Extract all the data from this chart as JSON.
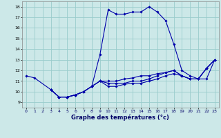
{
  "xlabel": "Graphe des températures (°c)",
  "background_color": "#cce8e8",
  "grid_color": "#99cccc",
  "line_color": "#0000aa",
  "xlim": [
    -0.5,
    23.5
  ],
  "ylim": [
    8.5,
    18.5
  ],
  "yticks": [
    9,
    10,
    11,
    12,
    13,
    14,
    15,
    16,
    17,
    18
  ],
  "xticks": [
    0,
    1,
    2,
    3,
    4,
    5,
    6,
    7,
    8,
    9,
    10,
    11,
    12,
    13,
    14,
    15,
    16,
    17,
    18,
    19,
    20,
    21,
    22,
    23
  ],
  "line1_x": [
    0,
    1,
    3,
    4,
    5,
    6,
    7,
    8,
    9,
    10,
    11,
    12,
    13,
    14,
    15,
    16,
    17,
    18,
    19,
    20,
    21,
    22,
    23
  ],
  "line1_y": [
    11.5,
    11.3,
    10.2,
    9.5,
    9.5,
    9.7,
    10.0,
    10.5,
    13.5,
    17.7,
    17.3,
    17.3,
    17.5,
    17.5,
    18.0,
    17.5,
    16.7,
    14.5,
    12.0,
    11.5,
    11.2,
    11.2,
    13.0
  ],
  "line2_x": [
    3,
    4,
    5,
    6,
    7,
    8,
    9,
    10,
    11,
    12,
    13,
    14,
    15,
    16,
    17,
    18,
    19,
    20,
    21,
    22,
    23
  ],
  "line2_y": [
    10.2,
    9.5,
    9.5,
    9.7,
    10.0,
    10.5,
    11.0,
    11.0,
    11.0,
    11.2,
    11.3,
    11.5,
    11.5,
    11.7,
    11.8,
    12.0,
    11.5,
    11.2,
    11.2,
    12.2,
    13.0
  ],
  "line3_x": [
    3,
    4,
    5,
    6,
    7,
    8,
    9,
    10,
    11,
    12,
    13,
    14,
    15,
    16,
    17,
    18,
    19,
    20,
    21,
    22,
    23
  ],
  "line3_y": [
    10.2,
    9.5,
    9.5,
    9.7,
    10.0,
    10.5,
    11.0,
    10.8,
    10.8,
    10.8,
    11.0,
    11.0,
    11.2,
    11.5,
    11.8,
    12.0,
    11.5,
    11.2,
    11.2,
    12.2,
    13.0
  ],
  "line4_x": [
    3,
    4,
    5,
    6,
    7,
    8,
    9,
    10,
    11,
    12,
    13,
    14,
    15,
    16,
    17,
    18,
    19,
    20,
    21,
    22,
    23
  ],
  "line4_y": [
    10.2,
    9.5,
    9.5,
    9.7,
    10.0,
    10.5,
    11.0,
    10.5,
    10.5,
    10.7,
    10.8,
    10.8,
    11.0,
    11.2,
    11.5,
    11.7,
    11.5,
    11.2,
    11.2,
    12.2,
    13.0
  ]
}
